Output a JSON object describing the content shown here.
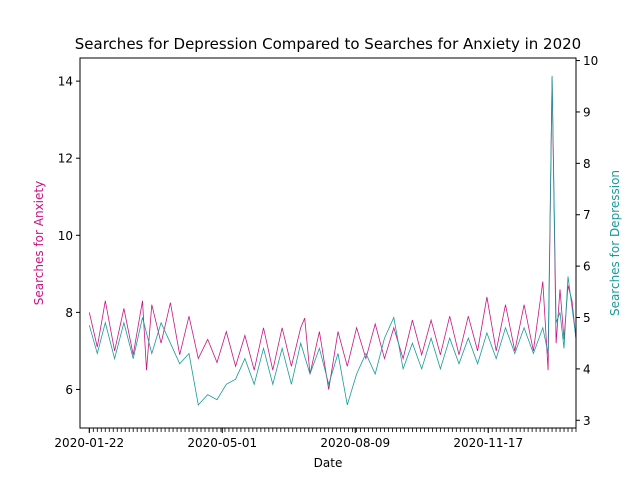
{
  "chart_data": {
    "type": "line",
    "title": "Searches for Depression Compared to Searches for Anxiety in 2020",
    "xlabel": "Date",
    "ylabel_left": "Searches for Anxiety",
    "ylabel_right": "Searches for Depression",
    "x_tick_labels": [
      "2020-01-22",
      "2020-05-01",
      "2020-08-09",
      "2020-11-17"
    ],
    "x_tick_dates": [
      "2020-01-22",
      "2020-05-01",
      "2020-08-09",
      "2020-11-17"
    ],
    "x_range": [
      "2020-01-15",
      "2021-01-22"
    ],
    "left_axis": {
      "ylim": [
        5.0,
        14.6
      ],
      "ticks": [
        6,
        8,
        10,
        12,
        14
      ]
    },
    "right_axis": {
      "ylim": [
        2.85,
        10.05
      ],
      "ticks": [
        3,
        4,
        5,
        6,
        7,
        8,
        9,
        10
      ]
    },
    "grid": false,
    "series": [
      {
        "name": "Searches for Anxiety",
        "axis": "left",
        "color": "#c71585",
        "points": [
          [
            "2020-01-22",
            8.0
          ],
          [
            "2020-01-28",
            7.1
          ],
          [
            "2020-02-03",
            8.3
          ],
          [
            "2020-02-10",
            7.0
          ],
          [
            "2020-02-17",
            8.1
          ],
          [
            "2020-02-24",
            6.9
          ],
          [
            "2020-03-02",
            8.3
          ],
          [
            "2020-03-05",
            6.5
          ],
          [
            "2020-03-09",
            8.2
          ],
          [
            "2020-03-16",
            7.2
          ],
          [
            "2020-03-23",
            8.25
          ],
          [
            "2020-03-30",
            6.9
          ],
          [
            "2020-04-06",
            7.9
          ],
          [
            "2020-04-13",
            6.8
          ],
          [
            "2020-04-20",
            7.3
          ],
          [
            "2020-04-27",
            6.7
          ],
          [
            "2020-05-04",
            7.5
          ],
          [
            "2020-05-11",
            6.6
          ],
          [
            "2020-05-18",
            7.4
          ],
          [
            "2020-05-25",
            6.5
          ],
          [
            "2020-06-01",
            7.6
          ],
          [
            "2020-06-08",
            6.5
          ],
          [
            "2020-06-15",
            7.6
          ],
          [
            "2020-06-22",
            6.6
          ],
          [
            "2020-06-29",
            7.6
          ],
          [
            "2020-07-02",
            7.85
          ],
          [
            "2020-07-06",
            6.4
          ],
          [
            "2020-07-13",
            7.5
          ],
          [
            "2020-07-20",
            6.0
          ],
          [
            "2020-07-27",
            7.5
          ],
          [
            "2020-08-03",
            6.6
          ],
          [
            "2020-08-10",
            7.6
          ],
          [
            "2020-08-17",
            6.8
          ],
          [
            "2020-08-24",
            7.7
          ],
          [
            "2020-08-31",
            6.8
          ],
          [
            "2020-09-07",
            7.6
          ],
          [
            "2020-09-14",
            6.8
          ],
          [
            "2020-09-21",
            7.8
          ],
          [
            "2020-09-28",
            6.9
          ],
          [
            "2020-10-05",
            7.8
          ],
          [
            "2020-10-12",
            6.9
          ],
          [
            "2020-10-19",
            7.9
          ],
          [
            "2020-10-26",
            6.9
          ],
          [
            "2020-11-02",
            7.9
          ],
          [
            "2020-11-09",
            7.0
          ],
          [
            "2020-11-16",
            8.4
          ],
          [
            "2020-11-23",
            7.0
          ],
          [
            "2020-11-30",
            8.2
          ],
          [
            "2020-12-07",
            7.0
          ],
          [
            "2020-12-14",
            8.2
          ],
          [
            "2020-12-21",
            7.0
          ],
          [
            "2020-12-28",
            8.8
          ],
          [
            "2021-01-01",
            6.5
          ],
          [
            "2021-01-04",
            14.1
          ],
          [
            "2021-01-07",
            7.2
          ],
          [
            "2021-01-10",
            8.6
          ],
          [
            "2021-01-13",
            7.3
          ],
          [
            "2021-01-16",
            8.7
          ],
          [
            "2021-01-19",
            8.3
          ],
          [
            "2021-01-22",
            7.3
          ]
        ]
      },
      {
        "name": "Searches for Depression",
        "axis": "right",
        "color": "#1a9a9a",
        "points": [
          [
            "2020-01-22",
            4.85
          ],
          [
            "2020-01-28",
            4.3
          ],
          [
            "2020-02-03",
            4.9
          ],
          [
            "2020-02-10",
            4.2
          ],
          [
            "2020-02-17",
            4.9
          ],
          [
            "2020-02-24",
            4.2
          ],
          [
            "2020-03-02",
            5.0
          ],
          [
            "2020-03-09",
            4.3
          ],
          [
            "2020-03-16",
            4.9
          ],
          [
            "2020-03-23",
            4.5
          ],
          [
            "2020-03-30",
            4.1
          ],
          [
            "2020-04-06",
            4.3
          ],
          [
            "2020-04-13",
            3.3
          ],
          [
            "2020-04-20",
            3.5
          ],
          [
            "2020-04-27",
            3.4
          ],
          [
            "2020-05-04",
            3.7
          ],
          [
            "2020-05-11",
            3.8
          ],
          [
            "2020-05-18",
            4.2
          ],
          [
            "2020-05-25",
            3.7
          ],
          [
            "2020-06-01",
            4.4
          ],
          [
            "2020-06-08",
            3.7
          ],
          [
            "2020-06-15",
            4.4
          ],
          [
            "2020-06-22",
            3.7
          ],
          [
            "2020-06-29",
            4.5
          ],
          [
            "2020-07-06",
            3.9
          ],
          [
            "2020-07-13",
            4.4
          ],
          [
            "2020-07-20",
            3.7
          ],
          [
            "2020-07-27",
            4.3
          ],
          [
            "2020-08-03",
            3.3
          ],
          [
            "2020-08-10",
            3.9
          ],
          [
            "2020-08-17",
            4.3
          ],
          [
            "2020-08-24",
            3.9
          ],
          [
            "2020-08-31",
            4.6
          ],
          [
            "2020-09-07",
            5.0
          ],
          [
            "2020-09-14",
            4.0
          ],
          [
            "2020-09-21",
            4.5
          ],
          [
            "2020-09-28",
            4.0
          ],
          [
            "2020-10-05",
            4.6
          ],
          [
            "2020-10-12",
            4.0
          ],
          [
            "2020-10-19",
            4.6
          ],
          [
            "2020-10-26",
            4.1
          ],
          [
            "2020-11-02",
            4.6
          ],
          [
            "2020-11-09",
            4.1
          ],
          [
            "2020-11-16",
            4.7
          ],
          [
            "2020-11-23",
            4.2
          ],
          [
            "2020-11-30",
            4.8
          ],
          [
            "2020-12-07",
            4.3
          ],
          [
            "2020-12-14",
            4.8
          ],
          [
            "2020-12-21",
            4.3
          ],
          [
            "2020-12-28",
            4.8
          ],
          [
            "2021-01-01",
            4.3
          ],
          [
            "2021-01-04",
            9.7
          ],
          [
            "2021-01-07",
            4.9
          ],
          [
            "2021-01-10",
            5.1
          ],
          [
            "2021-01-13",
            4.4
          ],
          [
            "2021-01-16",
            5.8
          ],
          [
            "2021-01-19",
            5.2
          ],
          [
            "2021-01-22",
            4.6
          ]
        ]
      }
    ]
  }
}
